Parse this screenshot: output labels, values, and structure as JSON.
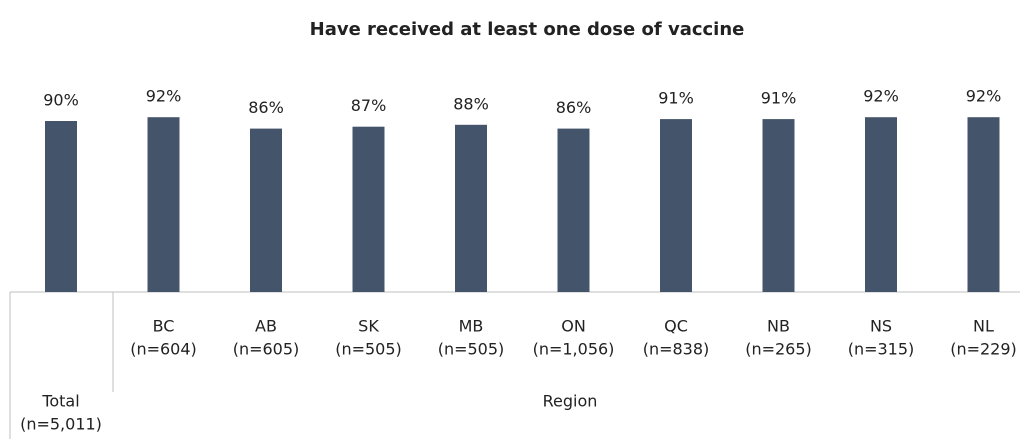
{
  "chart_data": {
    "type": "bar",
    "title": "Have received at least one dose of vaccine",
    "categories": [
      "Total",
      "BC",
      "AB",
      "SK",
      "MB",
      "ON",
      "QC",
      "NB",
      "NS",
      "NL"
    ],
    "sample_sizes": [
      "(n=5,011)",
      "(n=604)",
      "(n=605)",
      "(n=505)",
      "(n=505)",
      "(n=1,056)",
      "(n=838)",
      "(n=265)",
      "(n=315)",
      "(n=229)"
    ],
    "group_label": "Region",
    "values": [
      90,
      92,
      86,
      87,
      88,
      86,
      91,
      91,
      92,
      92
    ],
    "value_labels": [
      "90%",
      "92%",
      "86%",
      "87%",
      "88%",
      "86%",
      "91%",
      "91%",
      "92%",
      "92%"
    ],
    "color": "#44546a",
    "ylim": [
      0,
      100
    ]
  }
}
